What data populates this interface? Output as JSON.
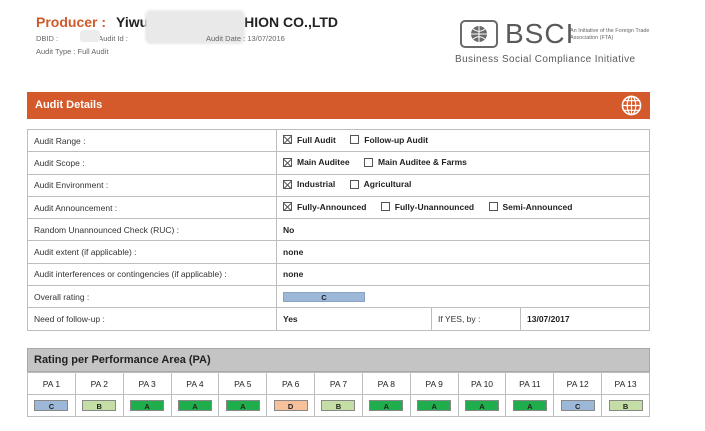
{
  "header": {
    "producer_label": "Producer :",
    "producer_name_start": "Yiwu",
    "producer_name_end": "HION CO.,LTD",
    "dbid_label": "DBID :",
    "audit_id_label": "nd Audit Id :",
    "audit_date": "Audit Date : 13/07/2016",
    "audit_type": "Audit Type : Full Audit"
  },
  "logo": {
    "brand": "BSCI",
    "fta_note": "An Initiative of the Foreign Trade Association (FTA)",
    "tagline": "Business Social Compliance Initiative"
  },
  "section": {
    "title": "Audit Details",
    "icon": "globe-icon"
  },
  "details": {
    "rows": [
      {
        "label": "Audit Range :",
        "options": [
          {
            "label": "Full Audit",
            "checked": true
          },
          {
            "label": "Follow-up Audit",
            "checked": false
          }
        ]
      },
      {
        "label": "Audit Scope :",
        "options": [
          {
            "label": "Main Auditee",
            "checked": true
          },
          {
            "label": "Main Auditee & Farms",
            "checked": false
          }
        ]
      },
      {
        "label": "Audit Environment :",
        "options": [
          {
            "label": "Industrial",
            "checked": true
          },
          {
            "label": "Agricultural",
            "checked": false
          }
        ]
      },
      {
        "label": "Audit Announcement :",
        "options": [
          {
            "label": "Fully-Announced",
            "checked": true
          },
          {
            "label": "Fully-Unannounced",
            "checked": false
          },
          {
            "label": "Semi-Announced",
            "checked": false
          }
        ]
      }
    ],
    "ruc_label": "Random Unannounced Check (RUC) :",
    "ruc_value": "No",
    "extent_label": "Audit extent (if applicable) :",
    "extent_value": "none",
    "interferences_label": "Audit interferences or contingencies (if applicable) :",
    "interferences_value": "none",
    "overall_label": "Overall rating :",
    "overall_value": "C",
    "followup_label": "Need of follow-up :",
    "followup_value": "Yes",
    "ifyes_label": "If YES, by :",
    "ifyes_date": "13/07/2017"
  },
  "pa": {
    "title": "Rating per Performance Area (PA)",
    "areas": [
      {
        "label": "PA 1",
        "grade": "C"
      },
      {
        "label": "PA 2",
        "grade": "B"
      },
      {
        "label": "PA 3",
        "grade": "A"
      },
      {
        "label": "PA 4",
        "grade": "A"
      },
      {
        "label": "PA 5",
        "grade": "A"
      },
      {
        "label": "PA 6",
        "grade": "D"
      },
      {
        "label": "PA 7",
        "grade": "B"
      },
      {
        "label": "PA 8",
        "grade": "A"
      },
      {
        "label": "PA 9",
        "grade": "A"
      },
      {
        "label": "PA 10",
        "grade": "A"
      },
      {
        "label": "PA 11",
        "grade": "A"
      },
      {
        "label": "PA 12",
        "grade": "C"
      },
      {
        "label": "PA 13",
        "grade": "B"
      }
    ],
    "grade_colors": {
      "A": "#1fae4b",
      "B": "#c5dea5",
      "C": "#9db7d8",
      "D": "#f6c19a"
    }
  }
}
